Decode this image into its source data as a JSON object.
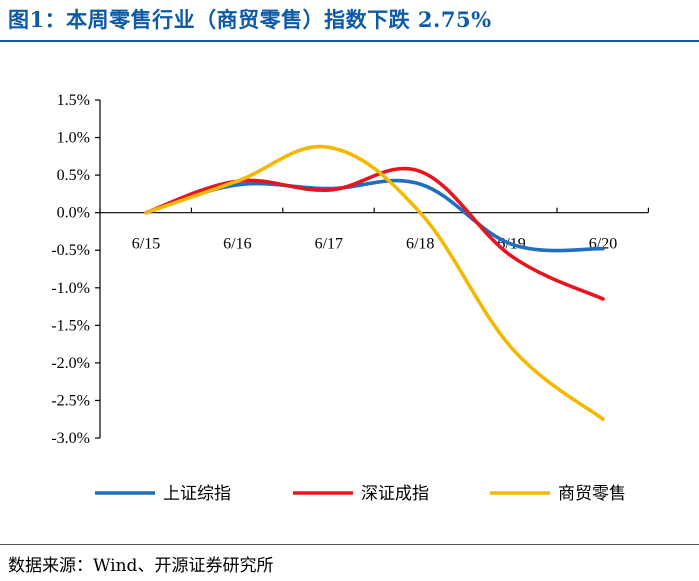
{
  "header": {
    "title": "图1：本周零售行业（商贸零售）指数下跌 2.75%"
  },
  "footer": {
    "source": "数据来源：Wind、开源证券研究所"
  },
  "chart_data": {
    "type": "line",
    "title": "",
    "xlabel": "",
    "ylabel": "",
    "categories": [
      "6/15",
      "6/16",
      "6/17",
      "6/18",
      "6/19",
      "6/20"
    ],
    "y_ticks": [
      "1.5%",
      "1.0%",
      "0.5%",
      "0.0%",
      "-0.5%",
      "-1.0%",
      "-1.5%",
      "-2.0%",
      "-2.5%",
      "-3.0%"
    ],
    "ylim": [
      -3.0,
      1.5
    ],
    "y_unit": "%",
    "grid": false,
    "legend_position": "bottom",
    "series": [
      {
        "name": "上证综指",
        "color": "#1f6fbf",
        "values": [
          0.0,
          0.37,
          0.32,
          0.38,
          -0.42,
          -0.48
        ]
      },
      {
        "name": "深证成指",
        "color": "#e8141e",
        "values": [
          0.0,
          0.42,
          0.3,
          0.55,
          -0.58,
          -1.15
        ]
      },
      {
        "name": "商贸零售",
        "color": "#f5b800",
        "values": [
          0.0,
          0.42,
          0.87,
          0.0,
          -1.8,
          -2.75
        ]
      }
    ]
  }
}
